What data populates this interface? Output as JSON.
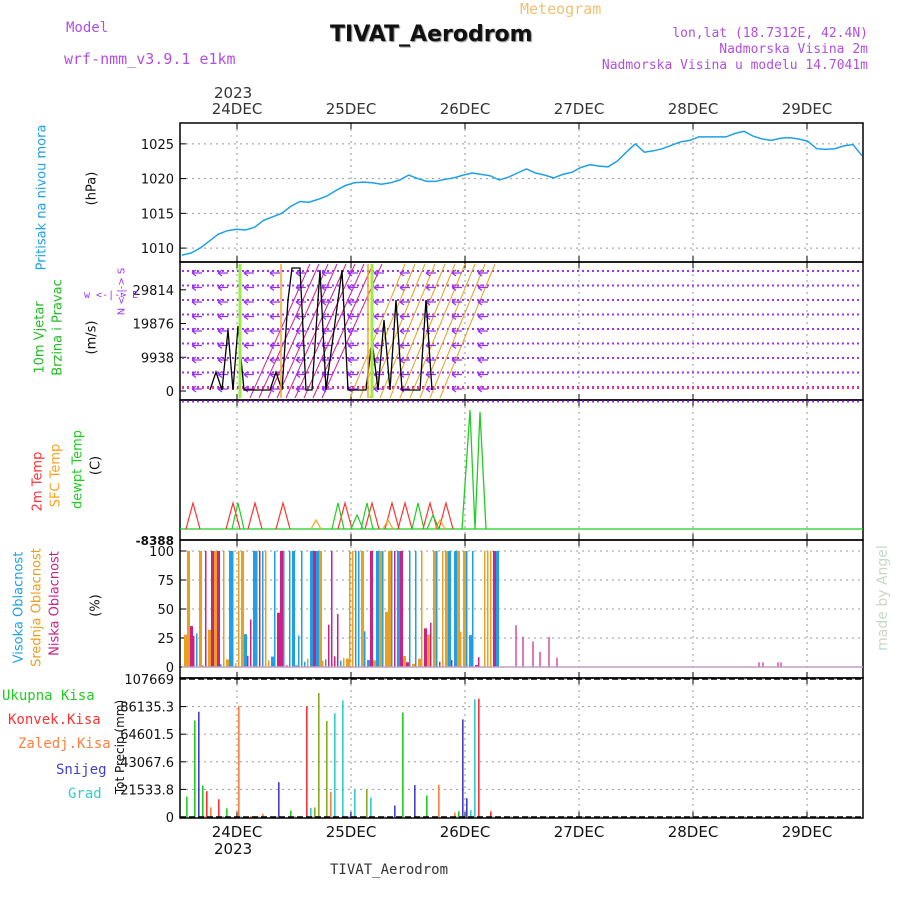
{
  "header": {
    "model_label": "Model",
    "model_name": "wrf-nmm_v3.9.1 e1km",
    "title": "TIVAT_Aerodrom",
    "meteogram": "Meteogram",
    "lonlat": "lon,lat (18.7312E, 42.4N)",
    "elev1": "Nadmorska Visina 2m",
    "elev2": "Nadmorska Visina u modelu 14.7041m",
    "footer": "TIVAT_Aerodrom",
    "watermark": "made by Angel"
  },
  "colors": {
    "pressure": "#1fa0e6",
    "wind": "#9b30ff",
    "temp2m": "#ff3333",
    "sfc": "#ffa01f",
    "dewpt": "#22cc22",
    "cloud_high": "#1fa0e6",
    "cloud_mid": "#e8a020",
    "cloud_low": "#cc2288",
    "grad": "#33cccc",
    "snow": "#4040cc"
  },
  "chart_data": {
    "type": "meteogram",
    "x_top_year": "2023",
    "x_bottom_year": "2023",
    "days": [
      "24DEC",
      "25DEC",
      "26DEC",
      "27DEC",
      "28DEC",
      "29DEC"
    ],
    "panels": [
      {
        "id": "pressure",
        "labels": [
          "Pritisak na nivou mora"
        ],
        "unit": "(hPa)",
        "yticks": [
          "1010",
          "1015",
          "1020",
          "1025"
        ],
        "ylim": [
          1008,
          1028
        ],
        "series_values": [
          1009,
          1009.3,
          1010,
          1011,
          1012,
          1012.5,
          1012.7,
          1012.6,
          1013,
          1014,
          1014.5,
          1015,
          1016,
          1016.7,
          1016.6,
          1017,
          1017.5,
          1018.3,
          1019,
          1019.4,
          1019.5,
          1019.4,
          1019.2,
          1019.4,
          1019.8,
          1020.5,
          1020,
          1019.6,
          1019.6,
          1019.9,
          1020.1,
          1020.5,
          1020.8,
          1020.6,
          1020.4,
          1019.8,
          1020.2,
          1020.8,
          1021.4,
          1020.8,
          1020.5,
          1020.1,
          1020.6,
          1020.9,
          1021.6,
          1022,
          1021.8,
          1021.7,
          1022.5,
          1023.8,
          1025,
          1023.8,
          1024,
          1024.3,
          1024.8,
          1025.3,
          1025.5,
          1026,
          1026,
          1026,
          1026,
          1026.5,
          1026.8,
          1026.1,
          1025.7,
          1025.5,
          1025.8,
          1025.9,
          1025.7,
          1025.4,
          1024.3,
          1024.2,
          1024.3,
          1024.7,
          1024.9,
          1023.3
        ]
      },
      {
        "id": "wind",
        "labels": [
          "10m Vjetar",
          "Brzina i Pravac"
        ],
        "unit": "(m/s)",
        "yticks": [
          "0",
          "9938",
          "19876",
          "29814"
        ],
        "ylim": [
          0,
          38000
        ],
        "compass": "w <-|-> E",
        "compass_ns": "N <-|-> S"
      },
      {
        "id": "temperature",
        "labels": [
          "2m Temp",
          "SFC Temp",
          "dewpt Temp"
        ],
        "unit": "(C)",
        "yticks": [
          "-8388"
        ]
      },
      {
        "id": "clouds",
        "labels": [
          "Visoka Oblacnost",
          "Srednja Oblacnost",
          "Niska Oblacnost"
        ],
        "unit": "(%)",
        "yticks": [
          "0",
          "25",
          "50",
          "75",
          "100"
        ],
        "ylim": [
          0,
          110
        ]
      },
      {
        "id": "precip",
        "labels": [
          "Ukupna Kisa",
          "Konvek.Kisa",
          "Zaledj.Kisa",
          "Snijeg",
          "Grad"
        ],
        "unit": "Tot Precip (mm)",
        "yticks": [
          "0",
          "21533.8",
          "43067.6",
          "64601.5",
          "86135.3",
          "107669"
        ],
        "ylim": [
          0,
          107669
        ]
      }
    ]
  }
}
